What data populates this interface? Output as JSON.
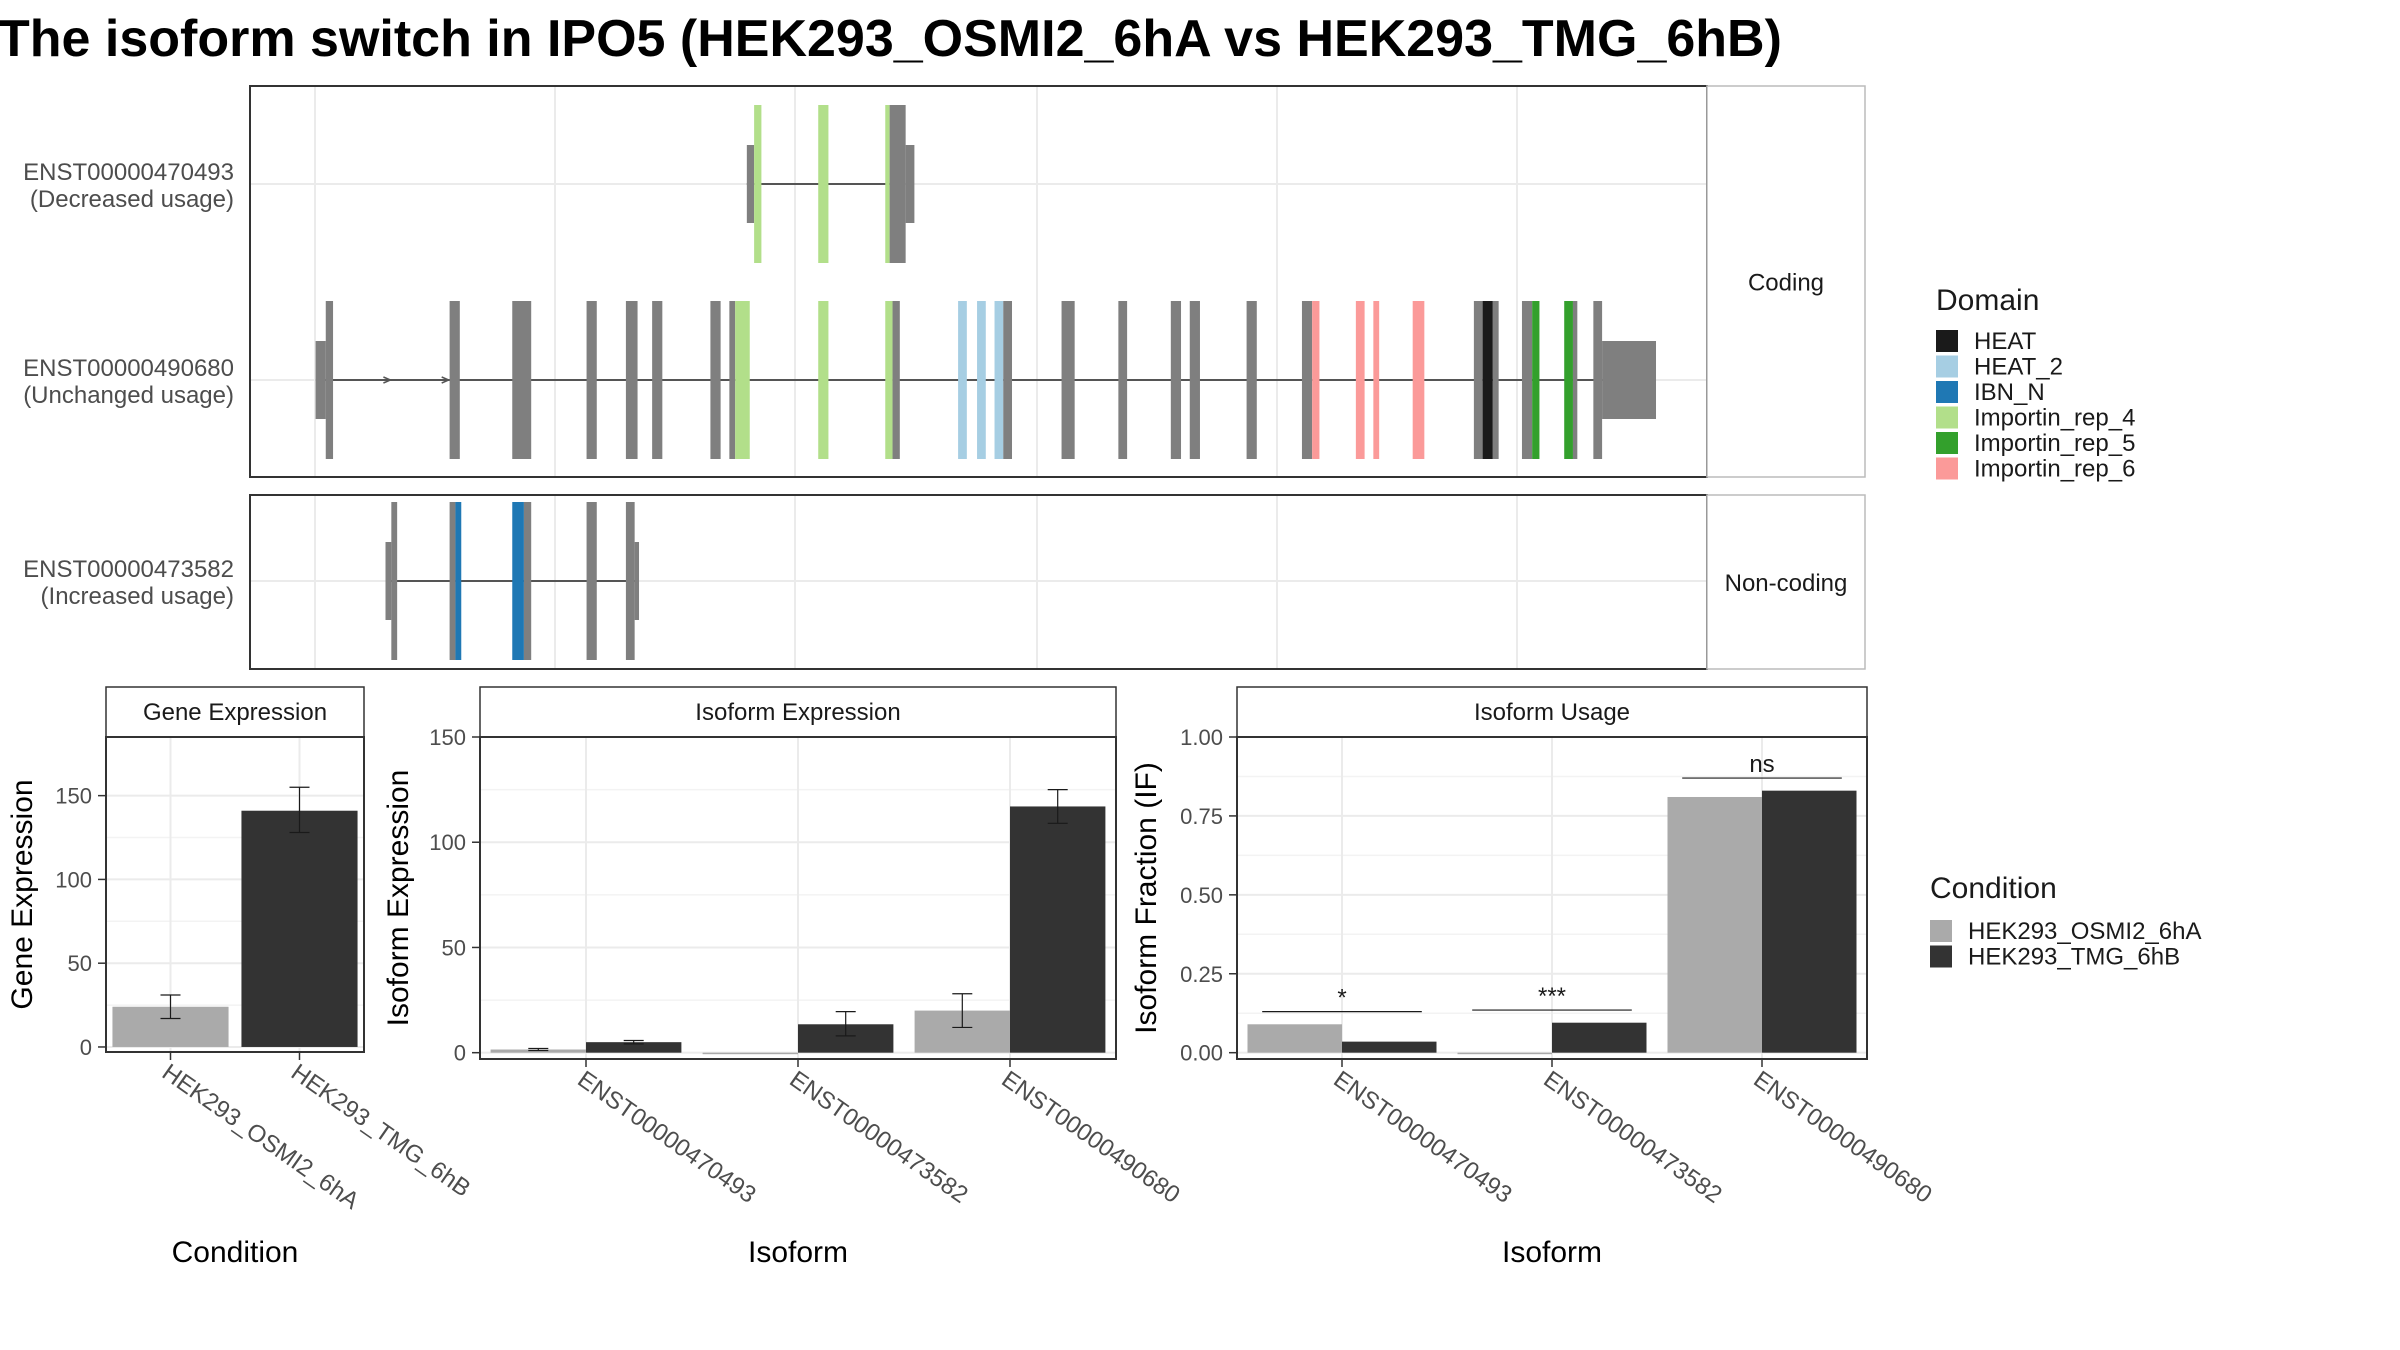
{
  "title": "The isoform switch in IPO5 (HEK293_OSMI2_6hA vs HEK293_TMG_6hB)",
  "colors": {
    "intron": "#555555",
    "exon": "#7f7f7f",
    "cond_a": "#aaaaaa",
    "cond_b": "#333333",
    "grid": "#ebebeb",
    "frame": "#333333",
    "strip_border": "#bbbbbb"
  },
  "legends": {
    "domain": {
      "title": "Domain",
      "items": [
        {
          "label": "HEAT",
          "color": "#1a1a1a"
        },
        {
          "label": "HEAT_2",
          "color": "#a6cee3"
        },
        {
          "label": "IBN_N",
          "color": "#1f78b4"
        },
        {
          "label": "Importin_rep_4",
          "color": "#b2df8a"
        },
        {
          "label": "Importin_rep_5",
          "color": "#33a02c"
        },
        {
          "label": "Importin_rep_6",
          "color": "#fb9a99"
        }
      ]
    },
    "condition": {
      "title": "Condition",
      "items": [
        {
          "label": "HEK293_OSMI2_6hA",
          "color": "#aaaaaa"
        },
        {
          "label": "HEK293_TMG_6hB",
          "color": "#333333"
        }
      ]
    }
  },
  "chart_data": [
    {
      "type": "gene_structure",
      "facets": [
        {
          "strip": "Coding",
          "isoforms": [
            "ENST00000470493",
            "ENST00000490680"
          ]
        },
        {
          "strip": "Non-coding",
          "isoforms": [
            "ENST00000473582"
          ]
        }
      ],
      "isoform_labels": [
        {
          "id": "ENST00000470493",
          "usage": "(Decreased usage)"
        },
        {
          "id": "ENST00000490680",
          "usage": "(Unchanged usage)"
        },
        {
          "id": "ENST00000473582",
          "usage": "(Increased usage)"
        }
      ],
      "track_scale_min": 0,
      "track_scale_max": 1000,
      "tracks": [
        {
          "isoform": "ENST00000470493",
          "span": [
            341,
            450
          ],
          "exons": [
            {
              "s": 341,
              "e": 346,
              "utr": true,
              "domain": null
            },
            {
              "s": 346,
              "e": 351,
              "domain": "Importin_rep_4"
            },
            {
              "s": 390,
              "e": 397,
              "domain": "Importin_rep_4"
            },
            {
              "s": 436,
              "e": 439,
              "domain": "Importin_rep_4"
            },
            {
              "s": 439,
              "e": 450,
              "domain": null
            },
            {
              "s": 450,
              "e": 456,
              "utr": true,
              "domain": null
            }
          ]
        },
        {
          "isoform": "ENST00000490680",
          "span": [
            45,
            958
          ],
          "arrows": [
            95,
            135
          ],
          "exons": [
            {
              "s": 45,
              "e": 52,
              "utr": true,
              "domain": null
            },
            {
              "s": 52,
              "e": 57,
              "domain": null
            },
            {
              "s": 137,
              "e": 144,
              "domain": null
            },
            {
              "s": 180,
              "e": 193,
              "domain": null
            },
            {
              "s": 231,
              "e": 238,
              "domain": null
            },
            {
              "s": 258,
              "e": 266,
              "domain": null
            },
            {
              "s": 276,
              "e": 283,
              "domain": null
            },
            {
              "s": 316,
              "e": 323,
              "domain": null
            },
            {
              "s": 329,
              "e": 333,
              "domain": null
            },
            {
              "s": 333,
              "e": 343,
              "domain": "Importin_rep_4"
            },
            {
              "s": 390,
              "e": 397,
              "domain": "Importin_rep_4"
            },
            {
              "s": 436,
              "e": 441,
              "domain": "Importin_rep_4"
            },
            {
              "s": 441,
              "e": 446,
              "domain": null
            },
            {
              "s": 486,
              "e": 492,
              "domain": "HEAT_2"
            },
            {
              "s": 499,
              "e": 505,
              "domain": "HEAT_2"
            },
            {
              "s": 511,
              "e": 517,
              "domain": "HEAT_2"
            },
            {
              "s": 517,
              "e": 523,
              "domain": null
            },
            {
              "s": 557,
              "e": 566,
              "domain": null
            },
            {
              "s": 596,
              "e": 602,
              "domain": null
            },
            {
              "s": 632,
              "e": 639,
              "domain": null
            },
            {
              "s": 645,
              "e": 652,
              "domain": null
            },
            {
              "s": 684,
              "e": 691,
              "domain": null
            },
            {
              "s": 722,
              "e": 729,
              "domain": null
            },
            {
              "s": 729,
              "e": 734,
              "domain": "Importin_rep_6"
            },
            {
              "s": 759,
              "e": 765,
              "domain": "Importin_rep_6"
            },
            {
              "s": 771,
              "e": 775,
              "domain": "Importin_rep_6"
            },
            {
              "s": 798,
              "e": 806,
              "domain": "Importin_rep_6"
            },
            {
              "s": 840,
              "e": 846,
              "domain": null
            },
            {
              "s": 846,
              "e": 853,
              "domain": "HEAT"
            },
            {
              "s": 853,
              "e": 857,
              "domain": null
            },
            {
              "s": 873,
              "e": 880,
              "domain": null
            },
            {
              "s": 880,
              "e": 885,
              "domain": "Importin_rep_5"
            },
            {
              "s": 902,
              "e": 908,
              "domain": "Importin_rep_5"
            },
            {
              "s": 908,
              "e": 911,
              "domain": null
            },
            {
              "s": 922,
              "e": 928,
              "domain": null
            },
            {
              "s": 928,
              "e": 965,
              "utr": true,
              "domain": null
            }
          ]
        },
        {
          "isoform": "ENST00000473582",
          "span": [
            93,
            265
          ],
          "exons": [
            {
              "s": 93,
              "e": 97,
              "utr": true,
              "domain": null
            },
            {
              "s": 97,
              "e": 101,
              "domain": null
            },
            {
              "s": 137,
              "e": 141,
              "domain": null
            },
            {
              "s": 141,
              "e": 145,
              "domain": "IBN_N"
            },
            {
              "s": 180,
              "e": 188,
              "domain": "IBN_N"
            },
            {
              "s": 188,
              "e": 193,
              "domain": null
            },
            {
              "s": 231,
              "e": 238,
              "domain": null
            },
            {
              "s": 258,
              "e": 264,
              "domain": null
            },
            {
              "s": 264,
              "e": 267,
              "utr": true,
              "domain": null
            }
          ]
        }
      ]
    },
    {
      "type": "bar",
      "strip": "Gene Expression",
      "xlabel": "Condition",
      "ylabel": "Gene Expression",
      "ylim": [
        -3,
        185
      ],
      "yticks": [
        0,
        50,
        100,
        150
      ],
      "categories": [
        "HEK293_OSMI2_6hA",
        "HEK293_TMG_6hB"
      ],
      "series": [
        {
          "name": "HEK293_OSMI2_6hA",
          "values": [
            24,
            null
          ],
          "errors": [
            [
              17,
              31
            ],
            null
          ]
        },
        {
          "name": "HEK293_TMG_6hB",
          "values": [
            null,
            141
          ],
          "errors": [
            null,
            [
              128,
              155
            ]
          ]
        }
      ]
    },
    {
      "type": "bar",
      "strip": "Isoform Expression",
      "xlabel": "Isoform",
      "ylabel": "Isoform Expression",
      "ylim": [
        -3,
        150
      ],
      "yticks": [
        0,
        50,
        100,
        150
      ],
      "categories": [
        "ENST00000470493",
        "ENST00000473582",
        "ENST00000490680"
      ],
      "series": [
        {
          "name": "HEK293_OSMI2_6hA",
          "values": [
            1.5,
            0,
            20
          ],
          "errors": [
            [
              1,
              2
            ],
            null,
            [
              12,
              28
            ]
          ]
        },
        {
          "name": "HEK293_TMG_6hB",
          "values": [
            5,
            13.5,
            117
          ],
          "errors": [
            [
              4.2,
              5.8
            ],
            [
              8,
              19.5
            ],
            [
              109,
              125
            ]
          ]
        }
      ]
    },
    {
      "type": "bar",
      "strip": "Isoform Usage",
      "xlabel": "Isoform",
      "ylabel": "Isoform Fraction (IF)",
      "ylim": [
        -0.02,
        1.0
      ],
      "yticks": [
        "0.00",
        "0.25",
        "0.50",
        "0.75",
        "1.00"
      ],
      "categories": [
        "ENST00000470493",
        "ENST00000473582",
        "ENST00000490680"
      ],
      "series": [
        {
          "name": "HEK293_OSMI2_6hA",
          "values": [
            0.09,
            0,
            0.81
          ]
        },
        {
          "name": "HEK293_TMG_6hB",
          "values": [
            0.035,
            0.095,
            0.83
          ]
        }
      ],
      "significance": [
        {
          "category": "ENST00000470493",
          "label": "*",
          "y": 0.13
        },
        {
          "category": "ENST00000473582",
          "label": "***",
          "y": 0.135
        },
        {
          "category": "ENST00000490680",
          "label": "ns",
          "y": 0.87
        }
      ]
    }
  ]
}
